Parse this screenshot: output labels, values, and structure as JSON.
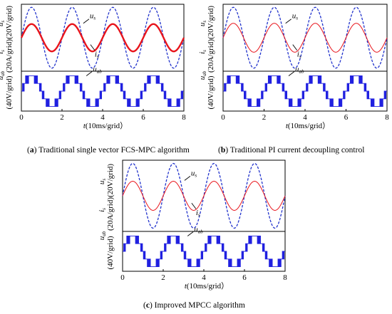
{
  "figure": {
    "panels": [
      {
        "id": "a",
        "letter": "a",
        "caption": "Traditional single vector FCS-MPC algorithm"
      },
      {
        "id": "b",
        "letter": "b",
        "caption": "Traditional PI current decoupling control"
      },
      {
        "id": "c",
        "letter": "c",
        "caption": "Improved MPCC algorithm"
      }
    ],
    "axis": {
      "xlabel_pre": "t",
      "xlabel_post": "(10ms/grid）",
      "xticks": [
        "0",
        "2",
        "4",
        "6",
        "8"
      ],
      "top_ylabel": "(20A/grid)(20V/grid)",
      "bottom_ylabel": "(40V/grid)"
    },
    "colors": {
      "voltage": "#2233cc",
      "current": "#e8141b",
      "pwm": "#2020e0"
    }
  },
  "chart_data": [
    {
      "type": "line",
      "panel": "a",
      "title": "Traditional single vector FCS-MPC algorithm",
      "xlabel": "t(10ms/grid）",
      "ylabel_top": "(20A/grid)(20V/grid)",
      "ylabel_bottom": "(40V/grid)",
      "xlim": [
        0,
        8
      ],
      "x_ticks": [
        0,
        2,
        4,
        6,
        8
      ],
      "grid": false,
      "series": [
        {
          "name": "u_s",
          "style": "dashed",
          "color": "#2233cc",
          "amplitude_div": 2.0,
          "period_ms": 20,
          "phase_deg": 0
        },
        {
          "name": "i_s",
          "style": "solid-thick",
          "color": "#e8141b",
          "amplitude_div": 0.9,
          "period_ms": 20,
          "phase_deg": 0
        },
        {
          "name": "u_ab",
          "style": "multilevel-pwm",
          "color": "#2020e0",
          "levels": [
            -2,
            -1,
            0,
            1,
            2
          ],
          "period_ms": 20
        }
      ]
    },
    {
      "type": "line",
      "panel": "b",
      "title": "Traditional PI current decoupling control",
      "xlabel": "t(10ms/grid）",
      "ylabel_top": "(20A/grid)(20V/grid)",
      "ylabel_bottom": "(40V/grid)",
      "xlim": [
        0,
        8
      ],
      "x_ticks": [
        0,
        2,
        4,
        6,
        8
      ],
      "grid": false,
      "series": [
        {
          "name": "u_s",
          "style": "dashed",
          "color": "#2233cc",
          "amplitude_div": 2.0,
          "period_ms": 20,
          "phase_deg": 0
        },
        {
          "name": "i_s",
          "style": "solid",
          "color": "#e8141b",
          "amplitude_div": 0.95,
          "period_ms": 20,
          "phase_deg": 0
        },
        {
          "name": "u_ab",
          "style": "multilevel-pwm",
          "color": "#2020e0",
          "levels": [
            -2,
            -1,
            0,
            1,
            2
          ],
          "period_ms": 20
        }
      ]
    },
    {
      "type": "line",
      "panel": "c",
      "title": "Improved MPCC algorithm",
      "xlabel": "t(10ms/grid）",
      "ylabel_top": "(20A/grid)(20V/grid)",
      "ylabel_bottom": "(40V/grid)",
      "xlim": [
        0,
        8
      ],
      "x_ticks": [
        0,
        2,
        4,
        6,
        8
      ],
      "grid": false,
      "series": [
        {
          "name": "u_s",
          "style": "dashed",
          "color": "#2233cc",
          "amplitude_div": 2.0,
          "period_ms": 20,
          "phase_deg": 0
        },
        {
          "name": "i_s",
          "style": "solid",
          "color": "#e8141b",
          "amplitude_div": 0.9,
          "period_ms": 20,
          "phase_deg": 0
        },
        {
          "name": "u_ab",
          "style": "multilevel-pwm",
          "color": "#2020e0",
          "levels": [
            -2,
            -1,
            0,
            1,
            2
          ],
          "period_ms": 20
        }
      ]
    }
  ]
}
